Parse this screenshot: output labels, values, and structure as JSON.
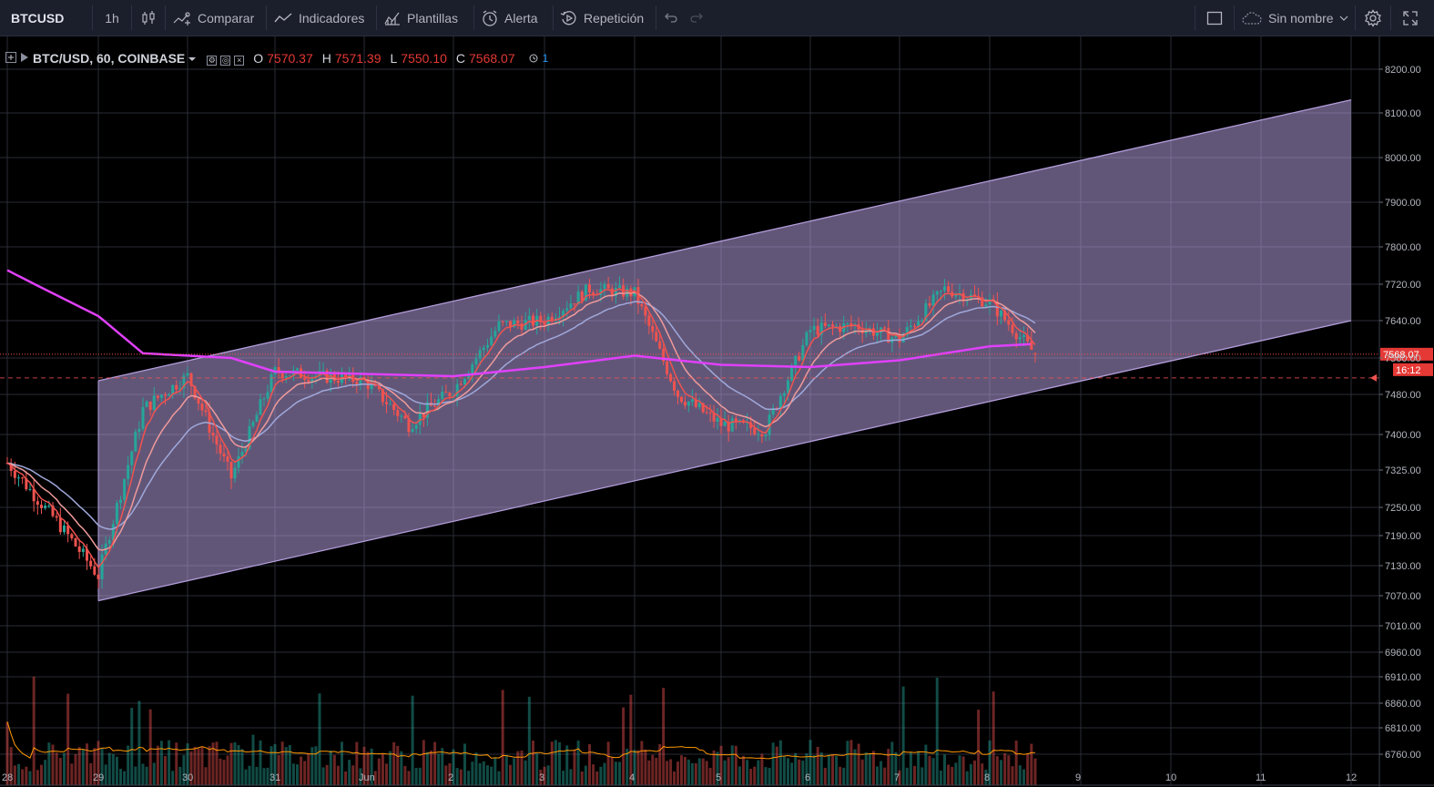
{
  "toolbar": {
    "symbol": "BTCUSD",
    "interval": "1h",
    "compare_label": "Comparar",
    "indicators_label": "Indicadores",
    "templates_label": "Plantillas",
    "alert_label": "Alerta",
    "replay_label": "Repetición",
    "layout_name": "Sin nombre",
    "icons": [
      "candles-icon",
      "compare-icon",
      "indicators-icon",
      "templates-icon",
      "alarm-clock-icon",
      "replay-icon",
      "undo-icon",
      "redo-icon",
      "square-icon",
      "cloud-icon",
      "gear-icon",
      "fullscreen-icon"
    ]
  },
  "legend": {
    "title": "BTC/USD, 60, COINBASE",
    "open_label": "O",
    "open": "7570.37",
    "high_label": "H",
    "high": "7571.39",
    "low_label": "L",
    "low": "7550.10",
    "close_label": "C",
    "close": "7568.07",
    "alert_count": "1"
  },
  "price_axis": {
    "current_price": "7568.07",
    "countdown": "16:12"
  },
  "colors": {
    "background": "#000000",
    "up": "#26a69a",
    "down": "#ef5350",
    "channel_fill": "#b39ddb",
    "ma_long": "#e040fb",
    "ma_fast": "#ef5350",
    "ma_mid": "#ef9a9a",
    "ma_slow": "#9fa8da",
    "volume_ma": "#ff9800"
  },
  "chart_data": {
    "type": "candlestick",
    "x_ticks": [
      "28",
      "29",
      "30",
      "31",
      "Jun",
      "2",
      "3",
      "4",
      "5",
      "6",
      "7",
      "8",
      "9",
      "10",
      "11",
      "12"
    ],
    "y_ticks": [
      "8200.00",
      "8100.00",
      "8000.00",
      "7900.00",
      "7800.00",
      "7720.00",
      "7640.00",
      "7560.00",
      "7480.00",
      "7400.00",
      "7325.00",
      "7250.00",
      "7190.00",
      "7130.00",
      "7070.00",
      "7010.00",
      "6960.00",
      "6910.00",
      "6860.00",
      "6810.00",
      "6760.00"
    ],
    "ylim": [
      6740,
      8230
    ],
    "y_scale": "log",
    "close_series_approx": [
      {
        "x": "May 28",
        "y": 7340
      },
      {
        "x": "May 28 12h",
        "y": 7230
      },
      {
        "x": "May 29",
        "y": 7110
      },
      {
        "x": "May 29 12h",
        "y": 7450
      },
      {
        "x": "May 30",
        "y": 7520
      },
      {
        "x": "May 30 12h",
        "y": 7310
      },
      {
        "x": "May 31",
        "y": 7530
      },
      {
        "x": "Jun 1",
        "y": 7510
      },
      {
        "x": "Jun 1 12h",
        "y": 7420
      },
      {
        "x": "Jun 2",
        "y": 7490
      },
      {
        "x": "Jun 2 12h",
        "y": 7630
      },
      {
        "x": "Jun 3",
        "y": 7640
      },
      {
        "x": "Jun 3 12h",
        "y": 7710
      },
      {
        "x": "Jun 4",
        "y": 7700
      },
      {
        "x": "Jun 4 12h",
        "y": 7480
      },
      {
        "x": "Jun 5",
        "y": 7420
      },
      {
        "x": "Jun 5 12h",
        "y": 7410
      },
      {
        "x": "Jun 6",
        "y": 7620
      },
      {
        "x": "Jun 6 12h",
        "y": 7630
      },
      {
        "x": "Jun 7",
        "y": 7600
      },
      {
        "x": "Jun 7 12h",
        "y": 7710
      },
      {
        "x": "Jun 8",
        "y": 7680
      },
      {
        "x": "Jun 8 12h",
        "y": 7568
      }
    ],
    "channel": {
      "lower": [
        {
          "x": "May 29",
          "y": 7060
        },
        {
          "x": "Jun 12",
          "y": 7640
        }
      ],
      "upper": [
        {
          "x": "May 29",
          "y": 7510
        },
        {
          "x": "Jun 12",
          "y": 8130
        }
      ]
    },
    "ma_long_approx": [
      {
        "x": "May 28",
        "y": 7750
      },
      {
        "x": "May 29",
        "y": 7650
      },
      {
        "x": "May 29 12h",
        "y": 7570
      },
      {
        "x": "May 30 12h",
        "y": 7560
      },
      {
        "x": "May 31",
        "y": 7530
      },
      {
        "x": "Jun 2",
        "y": 7520
      },
      {
        "x": "Jun 3",
        "y": 7540
      },
      {
        "x": "Jun 4",
        "y": 7565
      },
      {
        "x": "Jun 5",
        "y": 7545
      },
      {
        "x": "Jun 6",
        "y": 7540
      },
      {
        "x": "Jun 7",
        "y": 7555
      },
      {
        "x": "Jun 8",
        "y": 7585
      },
      {
        "x": "Jun 8 12h",
        "y": 7590
      }
    ]
  }
}
